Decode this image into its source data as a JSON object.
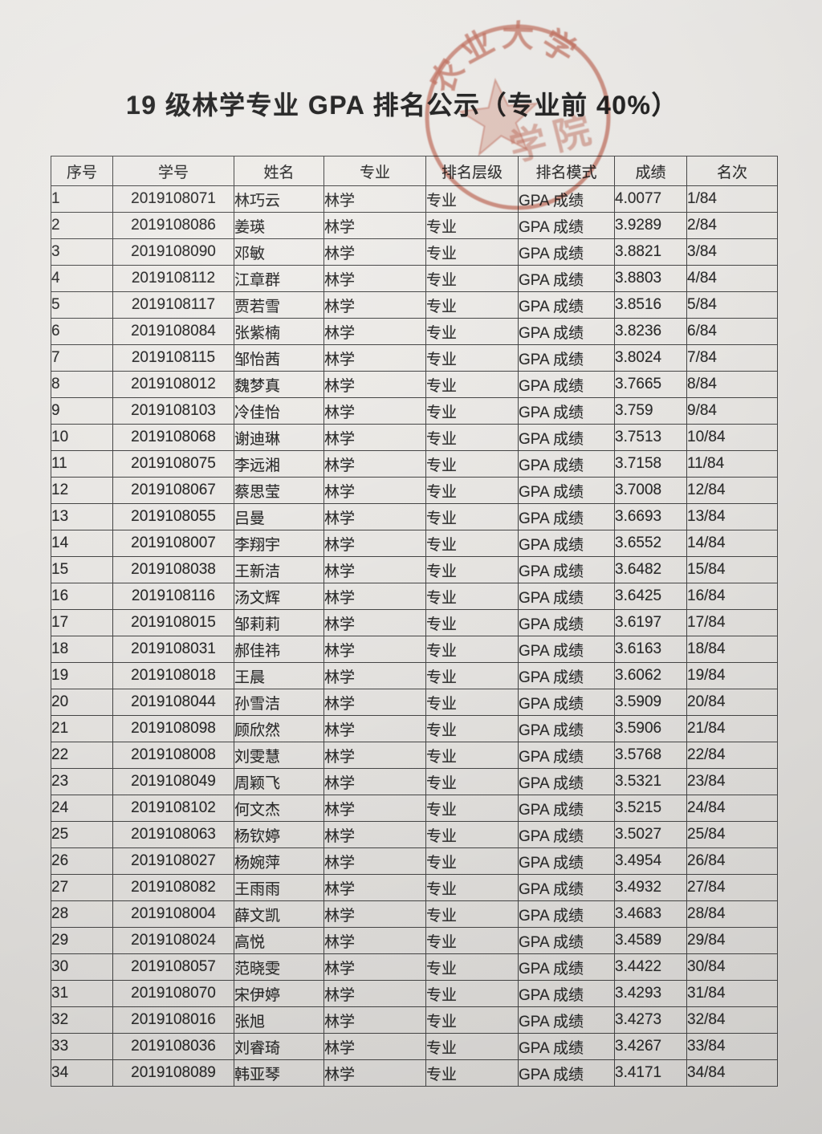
{
  "document": {
    "title": "19 级林学专业 GPA 排名公示（专业前 40%）"
  },
  "stamp": {
    "top_arc_text": "农业大学",
    "inner_text": "学院",
    "icon": "star-icon",
    "color": "#c0523c"
  },
  "table": {
    "headers": [
      "序号",
      "学号",
      "姓名",
      "专业",
      "排名层级",
      "排名模式",
      "成绩",
      "名次"
    ],
    "rows": [
      [
        "1",
        "2019108071",
        "林巧云",
        "林学",
        "专业",
        "GPA 成绩",
        "4.0077",
        "1/84"
      ],
      [
        "2",
        "2019108086",
        "姜瑛",
        "林学",
        "专业",
        "GPA 成绩",
        "3.9289",
        "2/84"
      ],
      [
        "3",
        "2019108090",
        "邓敏",
        "林学",
        "专业",
        "GPA 成绩",
        "3.8821",
        "3/84"
      ],
      [
        "4",
        "2019108112",
        "江章群",
        "林学",
        "专业",
        "GPA 成绩",
        "3.8803",
        "4/84"
      ],
      [
        "5",
        "2019108117",
        "贾若雪",
        "林学",
        "专业",
        "GPA 成绩",
        "3.8516",
        "5/84"
      ],
      [
        "6",
        "2019108084",
        "张紫楠",
        "林学",
        "专业",
        "GPA 成绩",
        "3.8236",
        "6/84"
      ],
      [
        "7",
        "2019108115",
        "邹怡茜",
        "林学",
        "专业",
        "GPA 成绩",
        "3.8024",
        "7/84"
      ],
      [
        "8",
        "2019108012",
        "魏梦真",
        "林学",
        "专业",
        "GPA 成绩",
        "3.7665",
        "8/84"
      ],
      [
        "9",
        "2019108103",
        "冷佳怡",
        "林学",
        "专业",
        "GPA 成绩",
        "3.759",
        "9/84"
      ],
      [
        "10",
        "2019108068",
        "谢迪琳",
        "林学",
        "专业",
        "GPA 成绩",
        "3.7513",
        "10/84"
      ],
      [
        "11",
        "2019108075",
        "李远湘",
        "林学",
        "专业",
        "GPA 成绩",
        "3.7158",
        "11/84"
      ],
      [
        "12",
        "2019108067",
        "蔡思莹",
        "林学",
        "专业",
        "GPA 成绩",
        "3.7008",
        "12/84"
      ],
      [
        "13",
        "2019108055",
        "吕曼",
        "林学",
        "专业",
        "GPA 成绩",
        "3.6693",
        "13/84"
      ],
      [
        "14",
        "2019108007",
        "李翔宇",
        "林学",
        "专业",
        "GPA 成绩",
        "3.6552",
        "14/84"
      ],
      [
        "15",
        "2019108038",
        "王新洁",
        "林学",
        "专业",
        "GPA 成绩",
        "3.6482",
        "15/84"
      ],
      [
        "16",
        "2019108116",
        "汤文辉",
        "林学",
        "专业",
        "GPA 成绩",
        "3.6425",
        "16/84"
      ],
      [
        "17",
        "2019108015",
        "邹莉莉",
        "林学",
        "专业",
        "GPA 成绩",
        "3.6197",
        "17/84"
      ],
      [
        "18",
        "2019108031",
        "郝佳祎",
        "林学",
        "专业",
        "GPA 成绩",
        "3.6163",
        "18/84"
      ],
      [
        "19",
        "2019108018",
        "王晨",
        "林学",
        "专业",
        "GPA 成绩",
        "3.6062",
        "19/84"
      ],
      [
        "20",
        "2019108044",
        "孙雪洁",
        "林学",
        "专业",
        "GPA 成绩",
        "3.5909",
        "20/84"
      ],
      [
        "21",
        "2019108098",
        "顾欣然",
        "林学",
        "专业",
        "GPA 成绩",
        "3.5906",
        "21/84"
      ],
      [
        "22",
        "2019108008",
        "刘雯慧",
        "林学",
        "专业",
        "GPA 成绩",
        "3.5768",
        "22/84"
      ],
      [
        "23",
        "2019108049",
        "周颖飞",
        "林学",
        "专业",
        "GPA 成绩",
        "3.5321",
        "23/84"
      ],
      [
        "24",
        "2019108102",
        "何文杰",
        "林学",
        "专业",
        "GPA 成绩",
        "3.5215",
        "24/84"
      ],
      [
        "25",
        "2019108063",
        "杨钦婷",
        "林学",
        "专业",
        "GPA 成绩",
        "3.5027",
        "25/84"
      ],
      [
        "26",
        "2019108027",
        "杨婉萍",
        "林学",
        "专业",
        "GPA 成绩",
        "3.4954",
        "26/84"
      ],
      [
        "27",
        "2019108082",
        "王雨雨",
        "林学",
        "专业",
        "GPA 成绩",
        "3.4932",
        "27/84"
      ],
      [
        "28",
        "2019108004",
        "薛文凯",
        "林学",
        "专业",
        "GPA 成绩",
        "3.4683",
        "28/84"
      ],
      [
        "29",
        "2019108024",
        "高悦",
        "林学",
        "专业",
        "GPA 成绩",
        "3.4589",
        "29/84"
      ],
      [
        "30",
        "2019108057",
        "范晓雯",
        "林学",
        "专业",
        "GPA 成绩",
        "3.4422",
        "30/84"
      ],
      [
        "31",
        "2019108070",
        "宋伊婷",
        "林学",
        "专业",
        "GPA 成绩",
        "3.4293",
        "31/84"
      ],
      [
        "32",
        "2019108016",
        "张旭",
        "林学",
        "专业",
        "GPA 成绩",
        "3.4273",
        "32/84"
      ],
      [
        "33",
        "2019108036",
        "刘睿琦",
        "林学",
        "专业",
        "GPA 成绩",
        "3.4267",
        "33/84"
      ],
      [
        "34",
        "2019108089",
        "韩亚琴",
        "林学",
        "专业",
        "GPA 成绩",
        "3.4171",
        "34/84"
      ]
    ]
  }
}
